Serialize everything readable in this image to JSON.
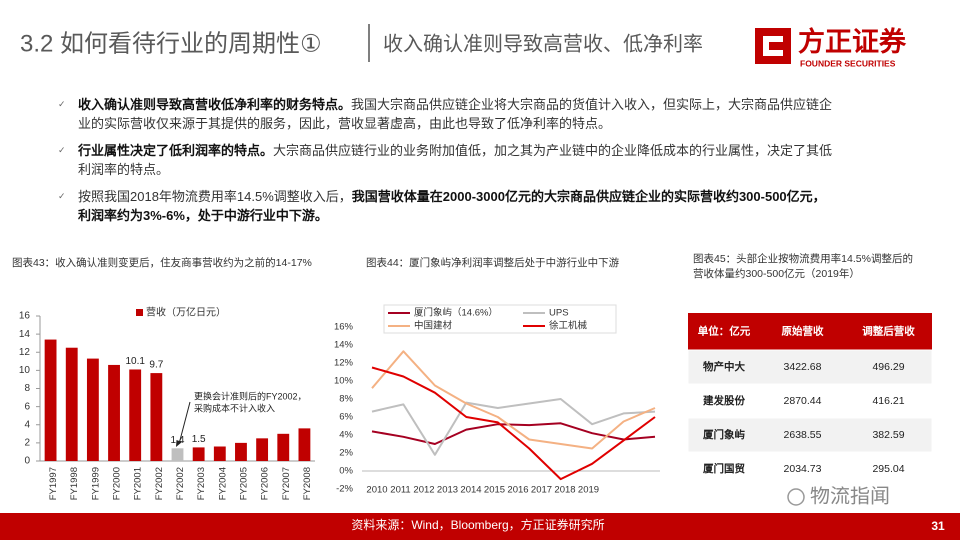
{
  "header": {
    "title": "3.2 如何看待行业的周期性①",
    "subtitle": "收入确认准则导致高营收、低净利率",
    "logo": "方正证券",
    "logo_en": "FOUNDER SECURITIES"
  },
  "bullets": [
    {
      "parts": [
        {
          "style": "strong",
          "text": "收入确认准则导致高营收低净利率的财务特点。"
        },
        {
          "style": "plain",
          "text": "我国大宗商品供应链企业将大宗商品的货值计入收入，但实际上，大宗商品供应链企业的实际营收仅来源于其提供的服务，因此，营收显著虚高，由此也导致了低净利率的特点。"
        }
      ]
    },
    {
      "parts": [
        {
          "style": "strong",
          "text": "行业属性决定了低利润率的特点。"
        },
        {
          "style": "plain",
          "text": "大宗商品供应链行业的业务附加值低，加之其为产业链中的企业降低成本的行业属性，决定了其低利润率的特点。"
        }
      ]
    },
    {
      "parts": [
        {
          "style": "plain",
          "text": "按照我国2018年物流费用率14.5%调整收入后，"
        },
        {
          "style": "strong",
          "text": "我国营收体量在2000-3000亿元的大宗商品供应链企业的实际营收约300-500亿元，利润率约为3%-6%，处于中游行业中下游。"
        }
      ]
    }
  ],
  "chart_data": [
    {
      "type": "bar",
      "title": "图表43：收入确认准则变更后，住友商事营收约为之前的14-17%",
      "categories": [
        "FY1997",
        "FY1998",
        "FY1999",
        "FY2000",
        "FY2001",
        "FY2002",
        "FY2002",
        "FY2003",
        "FY2004",
        "FY2005",
        "FY2006",
        "FY2007",
        "FY2008"
      ],
      "series": [
        {
          "name": "营收（万亿日元）",
          "color": "#c00000",
          "colors": [
            "#c00000",
            "#c00000",
            "#c00000",
            "#c00000",
            "#c00000",
            "#c00000",
            "#bfbfbf",
            "#c00000",
            "#c00000",
            "#c00000",
            "#c00000",
            "#c00000",
            "#c00000"
          ],
          "values": [
            13.4,
            12.5,
            11.3,
            10.6,
            10.1,
            9.7,
            1.4,
            1.5,
            1.6,
            2.0,
            2.5,
            3.0,
            3.6
          ],
          "value_labels": [
            null,
            null,
            null,
            null,
            "10.1",
            "9.7",
            "1.4",
            "1.5",
            null,
            null,
            null,
            null,
            null
          ]
        }
      ],
      "ylim": [
        0,
        16
      ],
      "yticks": [
        0,
        2,
        4,
        6,
        8,
        10,
        12,
        14,
        16
      ],
      "grid": false,
      "annotation": [
        "更换会计准则后的FY2002，",
        "采购成本不计入收入"
      ]
    },
    {
      "type": "line",
      "title": "图表44：厦门象屿净利润率调整后处于中游行业中下游",
      "categories": [
        "2010",
        "2011",
        "2012",
        "2013",
        "2014",
        "2015",
        "2016",
        "2017",
        "2018",
        "2019"
      ],
      "series": [
        {
          "name": "厦门象屿（14.6%）",
          "color": "#a50021",
          "values": [
            4.4,
            3.8,
            3.0,
            4.6,
            5.2,
            5.1,
            5.3,
            4.2,
            3.5,
            3.8
          ]
        },
        {
          "name": "UPS",
          "color": "#bfbfbf",
          "values": [
            6.6,
            7.4,
            1.8,
            7.6,
            7.0,
            7.5,
            8.0,
            5.2,
            6.4,
            6.6
          ]
        },
        {
          "name": "中国建材",
          "color": "#f4b183",
          "values": [
            9.2,
            13.3,
            9.5,
            7.5,
            6.0,
            3.5,
            3.0,
            2.5,
            5.5,
            7.0
          ]
        },
        {
          "name": "徐工机械",
          "color": "#e00000",
          "values": [
            11.5,
            10.5,
            8.7,
            6.0,
            5.4,
            2.5,
            -0.9,
            0.8,
            3.4,
            6.0
          ]
        }
      ],
      "ylim": [
        -2,
        16
      ],
      "yticks": [
        {
          "value": -2,
          "label": "-2%"
        },
        {
          "value": 0,
          "label": "0%"
        },
        {
          "value": 2,
          "label": "2%"
        },
        {
          "value": 4,
          "label": "4%"
        },
        {
          "value": 6,
          "label": "6%"
        },
        {
          "value": 8,
          "label": "8%"
        },
        {
          "value": 10,
          "label": "10%"
        },
        {
          "value": 12,
          "label": "12%"
        },
        {
          "value": 14,
          "label": "14%"
        },
        {
          "value": 16,
          "label": "16%"
        }
      ],
      "grid": false
    }
  ],
  "table": {
    "caption": "图表45：头部企业按物流费用率14.5%调整后的营收体量约300-500亿元（2019年）",
    "header": [
      "单位：亿元",
      "原始营收",
      "调整后营收"
    ],
    "rows": [
      [
        "物产中大",
        "3422.68",
        "496.29"
      ],
      [
        "建发股份",
        "2870.44",
        "416.21"
      ],
      [
        "厦门象屿",
        "2638.55",
        "382.59"
      ],
      [
        "厦门国贸",
        "2034.73",
        "295.04"
      ]
    ]
  },
  "footer": {
    "source": "资料来源：Wind，Bloomberg，方正证券研究所",
    "page": "31"
  },
  "watermark": "物流指闻"
}
